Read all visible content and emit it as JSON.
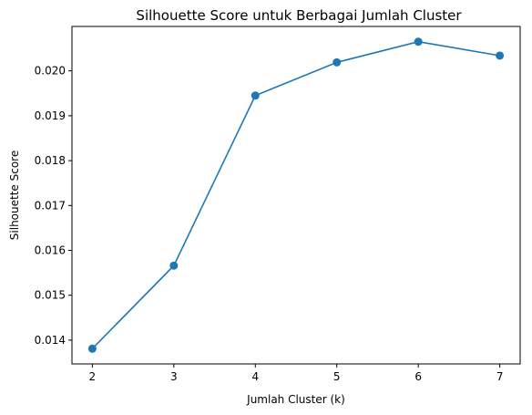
{
  "chart_data": {
    "type": "line",
    "title": "Silhouette Score untuk Berbagai Jumlah Cluster",
    "xlabel": "Jumlah Cluster (k)",
    "ylabel": "Silhouette Score",
    "x": [
      2,
      3,
      4,
      5,
      6,
      7
    ],
    "y": [
      0.01381,
      0.01566,
      0.01945,
      0.02019,
      0.02065,
      0.02034
    ],
    "xticks": [
      "2",
      "3",
      "4",
      "5",
      "6",
      "7"
    ],
    "yticks": [
      "0.014",
      "0.015",
      "0.016",
      "0.017",
      "0.018",
      "0.019",
      "0.020"
    ],
    "ytick_values": [
      0.014,
      0.015,
      0.016,
      0.017,
      0.018,
      0.019,
      0.02
    ],
    "xlim": [
      1.75,
      7.25
    ],
    "ylim": [
      0.01347,
      0.02099
    ],
    "grid": false,
    "legend": "none",
    "marker": "circle",
    "color": "#1f77b4"
  }
}
